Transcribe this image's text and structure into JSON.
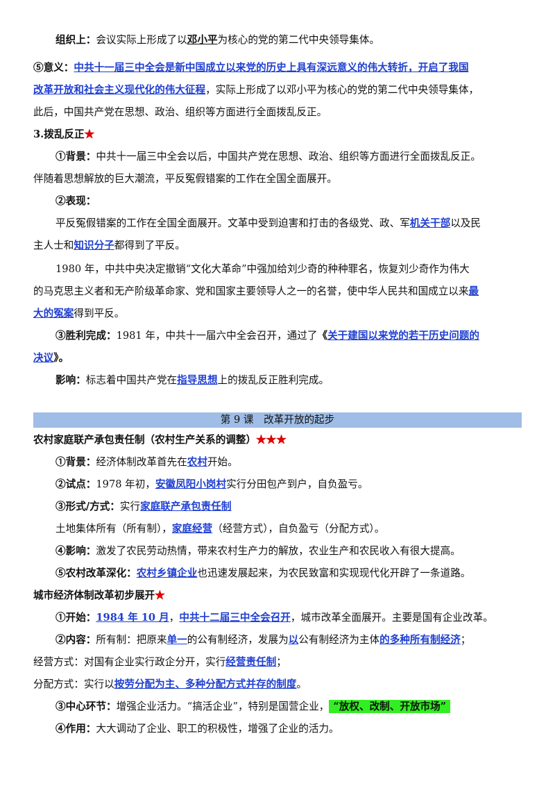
{
  "colors": {
    "highlight_text": "#1f3fd1",
    "star": "#e00000",
    "lesson_bar": "#9fbde6",
    "green_marker": "#33ee22"
  },
  "star": "★",
  "stars3": "★★★",
  "l1": {
    "a": "组织上：",
    "b": "会议实际上形成了以",
    "c": "邓小平",
    "d": "为核心的党的第二代中央领导集体。"
  },
  "l2": {
    "a": "⑤意义：",
    "b": "中共十一届三中全会是新中国成立以来党的历史上具有深远意义的伟大转折，开启了我国"
  },
  "l3": {
    "a": "改革开放和社会主义现代化的伟大征程",
    "b": "，实际上形成了以邓小平为核心的党的第二代中央领导集体，"
  },
  "l4": "此后，中国共产党在思想、政治、组织等方面进行全面拨乱反正。",
  "s3": {
    "title": "3.拨乱反正"
  },
  "l6": {
    "a": "①背景：",
    "b": "中共十一届三中全会以后，中国共产党在思想、政治、组织等方面进行全面拨乱反正。"
  },
  "l7": "伴随着思想解放的巨大潮流，平反冤假错案的工作在全国全面展开。",
  "l8": "②表现：",
  "l9": {
    "a": "平反冤假错案的工作在全国全面展开。文革中受到迫害和打击的各级党、政、军",
    "b": "机关干部",
    "c": "以及民"
  },
  "l10": {
    "a": "主人士和",
    "b": "知识分子",
    "c": "都得到了平反。"
  },
  "l11": "1980 年，中共中央决定撤销“文化大革命”中强加给刘少奇的种种罪名，恢复刘少奇作为伟大",
  "l12": {
    "a": "的马克思主义者和无产阶级革命家、党和国家主要领导人之一的名誉，使中华人民共和国成立以来",
    "b": "最"
  },
  "l13": {
    "a": "大的冤案",
    "b": "得到平反。"
  },
  "l14": {
    "a": "③胜利完成：",
    "b": "1981 年，中共十一届六中全会召开，通过了",
    "c": "《",
    "d": "关于建国以来党的若干历史问题的"
  },
  "l15": {
    "a": "决议",
    "b": "》。"
  },
  "l16": {
    "a": "影响：",
    "b": "标志着中国共产党在",
    "c": "指导思想",
    "d": "上的拨乱反正胜利完成。"
  },
  "lesson": "第 9 课　改革开放的起步",
  "h1": "农村家庭联产承包责任制（农村生产关系的调整）",
  "r1": {
    "a": "①背景：",
    "b": "经济体制改革首先在",
    "c": "农村",
    "d": "开始。"
  },
  "r2": {
    "a": "②试点：",
    "b": "1978 年初，",
    "c": "安徽凤阳小岗村",
    "d": "实行分田包产到户，自负盈亏。"
  },
  "r3": {
    "a": "③形式/方式：",
    "b": "实行",
    "c": "家庭联产承包责任制"
  },
  "r4": {
    "a": "土地集体所有（所有制），",
    "b": "家庭经营",
    "c": "（经营方式），自负盈亏（分配方式）。"
  },
  "r5": {
    "a": "④影响：",
    "b": "激发了农民劳动热情，带来农村生产力的解放，农业生产和农民收入有很大提高。"
  },
  "r6": {
    "a": "⑤农村改革深化：",
    "b": "农村乡镇企业",
    "c": "也迅速发展起来，为农民致富和实现现代化开辟了一条道路。"
  },
  "h2": "城市经济体制改革初步展开",
  "c1": {
    "a": "①开始：",
    "b": "1984 年 10 月",
    "c": "，",
    "d": "中共十二届三中全会召开",
    "e": "，城市改革全面展开。主要是国有企业改革。"
  },
  "c2": {
    "a": "②内容：",
    "b": "所有制：把原来",
    "c": "单一",
    "d": "的公有制经济，发展为",
    "e": "以",
    "f": "公有制经济为主体",
    "g": "的多种所有制经济",
    "h": "；"
  },
  "c3": {
    "a": "经营方式：对国有企业实行政企分开，实行",
    "b": "经营责任制",
    "c": "；"
  },
  "c4": {
    "a": "分配方式：实行以",
    "b": "按劳分配为主、多种分配方式并存的制度",
    "c": "。"
  },
  "c5": {
    "a": "③中心环节：",
    "b": "增强企业活力。“搞活企业”，特别是国营企业，",
    "c": "“放权、改制、开放市场”"
  },
  "c6": {
    "a": "④作用：",
    "b": "大大调动了企业、职工的积极性，增强了企业的活力。"
  }
}
